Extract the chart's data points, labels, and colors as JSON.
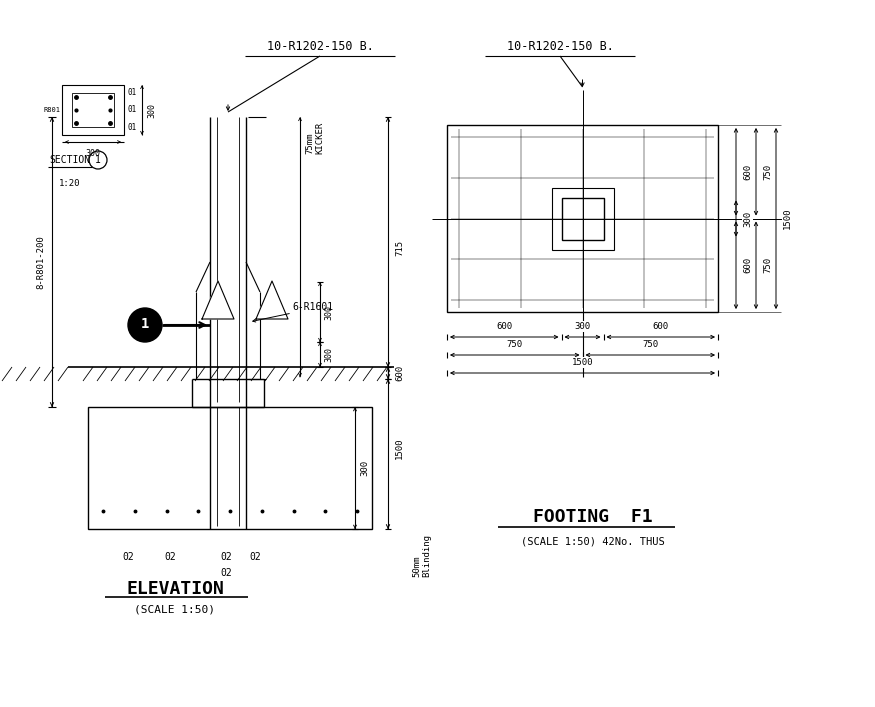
{
  "bg_color": "#ffffff",
  "line_color": "#000000",
  "title_elevation": "ELEVATION",
  "subtitle_elevation": "(SCALE 1:50)",
  "title_footing": "FOOTING  F1",
  "subtitle_footing": "(SCALE 1:50) 42No. THUS",
  "section_label": "SECTION",
  "section_scale": "1:20",
  "rebar_label1": "10-R1202-150 B.",
  "rebar_label2": "10-R1202-150 B.",
  "rebar_side": "6-R1601",
  "main_rebar": "8-R801-200",
  "kicker_label": "75mm\nKICKER",
  "blinding_label": "50mm\nBlinding"
}
